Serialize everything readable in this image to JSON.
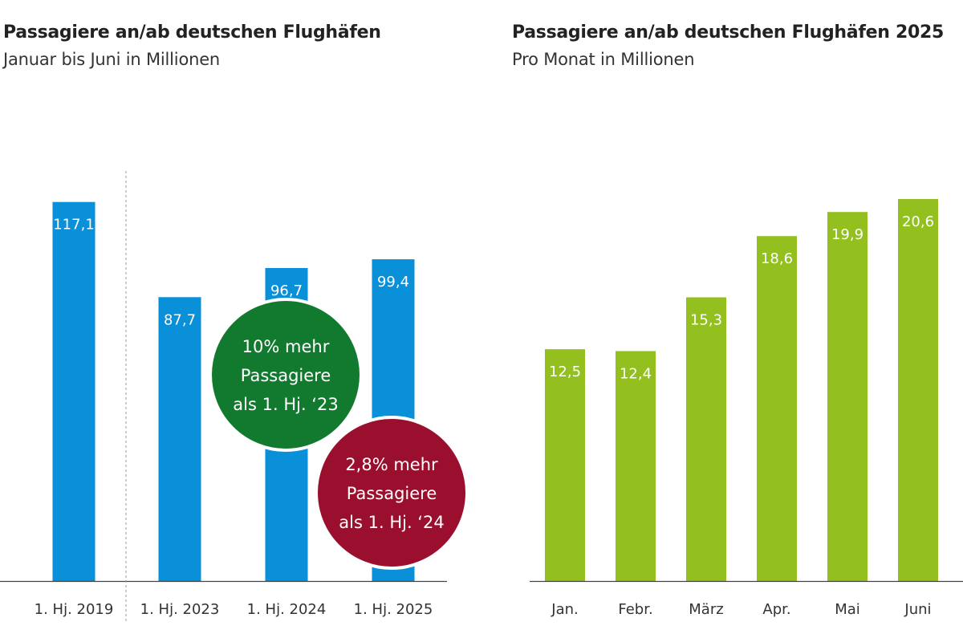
{
  "chart_data": [
    {
      "type": "bar",
      "title": "Passagiere an/ab deutschen Flughäfen",
      "subtitle": "Januar bis Juni in Millionen",
      "categories": [
        "1. Hj. 2019",
        "1. Hj. 2023",
        "1. Hj. 2024",
        "1. Hj. 2025"
      ],
      "values": [
        117.1,
        87.7,
        96.7,
        99.4
      ],
      "value_labels": [
        "117,1",
        "87,7",
        "96,7",
        "99,4"
      ],
      "color": "#0a8fd9",
      "ylim": [
        0,
        120
      ],
      "separator_after_index": 0,
      "annotations": [
        {
          "lines": [
            "10% mehr",
            "Passagiere",
            "als 1. Hj. ‘23"
          ],
          "color": "#127a2e"
        },
        {
          "lines": [
            "2,8% mehr",
            "Passagiere",
            "als 1. Hj. ‘24"
          ],
          "color": "#9b0f2e"
        }
      ]
    },
    {
      "type": "bar",
      "title": "Passagiere an/ab deutschen Flughäfen 2025",
      "subtitle": "Pro Monat in Millionen",
      "categories": [
        "Jan.",
        "Febr.",
        "März",
        "Apr.",
        "Mai",
        "Juni"
      ],
      "values": [
        12.5,
        12.4,
        15.3,
        18.6,
        19.9,
        20.6
      ],
      "value_labels": [
        "12,5",
        "12,4",
        "15,3",
        "18,6",
        "19,9",
        "20,6"
      ],
      "color": "#93c01f",
      "ylim": [
        0,
        20.6
      ]
    }
  ]
}
